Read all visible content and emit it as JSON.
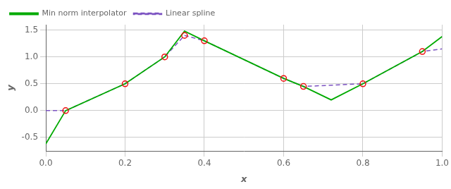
{
  "chart_data": {
    "type": "line",
    "xlabel": "x",
    "ylabel": "y",
    "xlim": [
      0.0,
      1.0
    ],
    "ylim": [
      -0.75,
      1.6
    ],
    "xticks": [
      {
        "value": 0.0,
        "label": "0.0"
      },
      0.2,
      0.4,
      0.6,
      0.8,
      {
        "value": 1.0,
        "label": "1.0"
      }
    ],
    "yticks": [
      -0.5,
      {
        "value": 0.0,
        "label": "0.0"
      },
      0.5,
      {
        "value": 1.0,
        "label": "1.0"
      },
      1.5
    ],
    "grid": true,
    "legend": "upper left",
    "series": [
      {
        "name": "Min norm interpolator",
        "type": "line",
        "color": "#00aa00",
        "line_style": "solid",
        "x": [
          0.0,
          0.05,
          0.2,
          0.3,
          0.35,
          0.4,
          0.6,
          0.65,
          0.72,
          0.8,
          0.95,
          1.0
        ],
        "values": [
          -0.62,
          0.0,
          0.5,
          1.0,
          1.48,
          1.3,
          0.6,
          0.45,
          0.2,
          0.5,
          1.1,
          1.38
        ]
      },
      {
        "name": "Linear spline",
        "type": "line",
        "color": "#7B52C1",
        "line_style": "dashed",
        "x": [
          0.0,
          0.05,
          0.2,
          0.3,
          0.35,
          0.4,
          0.6,
          0.65,
          0.8,
          0.95,
          1.0
        ],
        "values": [
          0.0,
          0.0,
          0.5,
          1.0,
          1.4,
          1.3,
          0.6,
          0.45,
          0.5,
          1.1,
          1.15
        ]
      },
      {
        "type": "scatter",
        "color": "#ee1111",
        "marker": "circle",
        "x": [
          0.05,
          0.2,
          0.3,
          0.35,
          0.4,
          0.6,
          0.65,
          0.8,
          0.95
        ],
        "values": [
          0.0,
          0.5,
          1.0,
          1.4,
          1.3,
          0.6,
          0.45,
          0.5,
          1.1
        ]
      }
    ]
  }
}
